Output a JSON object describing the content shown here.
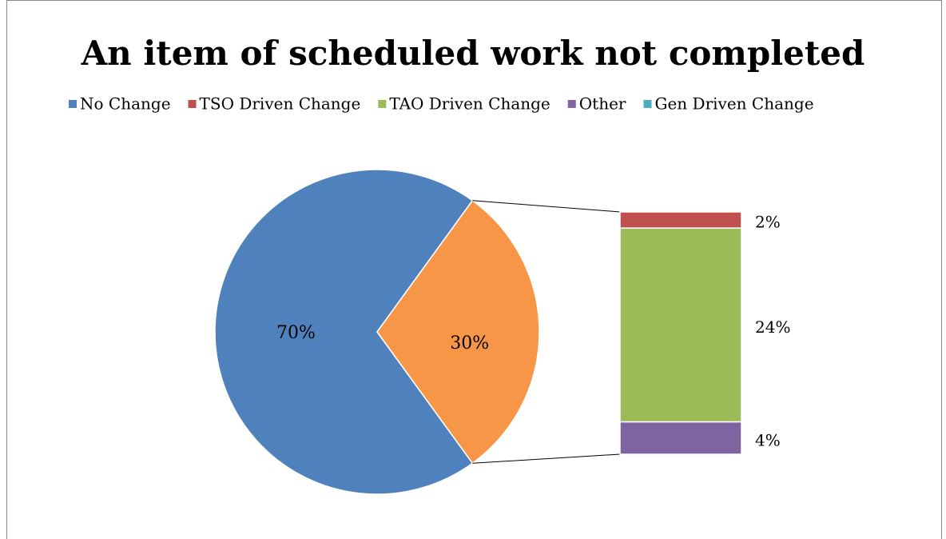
{
  "chart_data": {
    "type": "bar_of_pie",
    "title": "An item of scheduled work not completed",
    "categories": [
      "No Change",
      "TSO Driven Change",
      "TAO Driven Change",
      "Other",
      "Gen Driven Change"
    ],
    "values": [
      70,
      2,
      24,
      4,
      0
    ],
    "value_labels": [
      "70%",
      "2%",
      "24%",
      "4%",
      null
    ],
    "colors": [
      "#4f81bd",
      "#c0504d",
      "#9bbb59",
      "#8064a2",
      "#4bacc6"
    ],
    "group_value": 30,
    "group_label": "30%",
    "group_color": "#f79646",
    "legend": "top"
  }
}
